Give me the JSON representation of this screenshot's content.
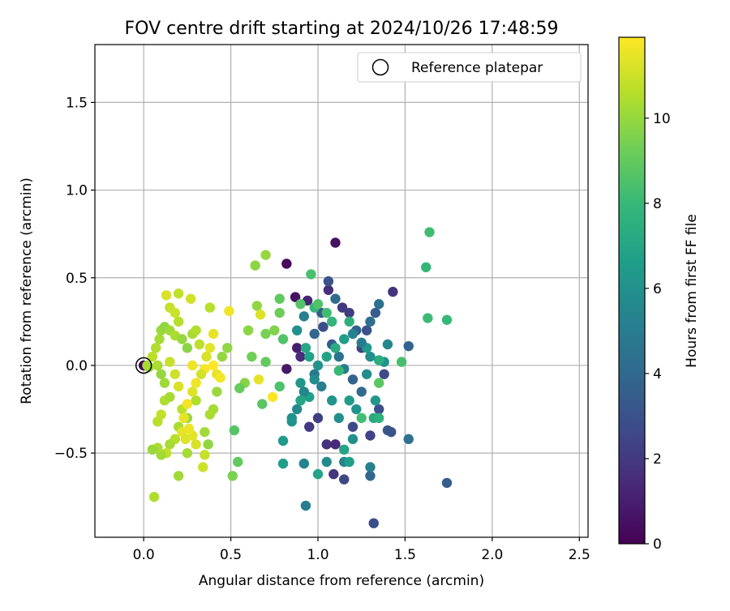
{
  "chart_data": {
    "type": "scatter",
    "title": "FOV centre drift starting at 2024/10/26 17:48:59",
    "xlabel": "Angular distance from reference (arcmin)",
    "ylabel": "Rotation from reference (arcmin)",
    "xlim": [
      -0.28,
      2.55
    ],
    "ylim": [
      -0.98,
      1.83
    ],
    "x_ticks": [
      0.0,
      0.5,
      1.0,
      1.5,
      2.0,
      2.5
    ],
    "x_tick_labels": [
      "0.0",
      "0.5",
      "1.0",
      "1.5",
      "2.0",
      "2.5"
    ],
    "y_ticks": [
      -0.5,
      0.0,
      0.5,
      1.0,
      1.5
    ],
    "y_tick_labels": [
      "−0.5",
      "0.0",
      "0.5",
      "1.0",
      "1.5"
    ],
    "grid": true,
    "legend": {
      "position": "top-right",
      "entries": [
        "Reference platepar"
      ]
    },
    "reference_point": {
      "x": 0.0,
      "y": 0.0,
      "label": "Reference platepar"
    },
    "colorbar": {
      "label": "Hours from first FF file",
      "range": [
        0,
        11.9
      ],
      "ticks": [
        0,
        2,
        4,
        6,
        8,
        10
      ],
      "tick_labels": [
        "0",
        "2",
        "4",
        "6",
        "8",
        "10"
      ],
      "colormap": "viridis"
    },
    "colormap_stops": [
      "#440154",
      "#482878",
      "#3e4a89",
      "#31688e",
      "#26828e",
      "#1f9e89",
      "#35b779",
      "#6ece58",
      "#b5de2b",
      "#fde725"
    ],
    "points": [
      [
        0.0,
        0.0,
        0.1
      ],
      [
        0.82,
        0.58,
        0.3
      ],
      [
        1.1,
        0.7,
        0.6
      ],
      [
        0.87,
        0.39,
        0.5
      ],
      [
        0.94,
        0.37,
        1.2
      ],
      [
        1.06,
        0.43,
        1.6
      ],
      [
        1.06,
        0.48,
        3.0
      ],
      [
        1.43,
        0.42,
        1.8
      ],
      [
        1.09,
        -0.62,
        1.9
      ],
      [
        1.15,
        -0.65,
        2.5
      ],
      [
        1.32,
        -0.9,
        2.8
      ],
      [
        1.74,
        -0.67,
        3.5
      ],
      [
        1.52,
        0.11,
        3.8
      ],
      [
        1.52,
        -0.42,
        4.5
      ],
      [
        0.93,
        -0.8,
        5.1
      ],
      [
        0.88,
        0.1,
        1.0
      ],
      [
        0.82,
        -0.02,
        0.8
      ],
      [
        0.9,
        0.05,
        1.5
      ],
      [
        0.95,
        -0.35,
        2.0
      ],
      [
        1.0,
        -0.3,
        2.2
      ],
      [
        1.05,
        -0.45,
        1.7
      ],
      [
        1.1,
        -0.45,
        1.4
      ],
      [
        1.2,
        -0.35,
        2.6
      ],
      [
        1.3,
        -0.63,
        4.0
      ],
      [
        1.3,
        -0.4,
        2.4
      ],
      [
        1.4,
        -0.37,
        3.2
      ],
      [
        1.42,
        -0.38,
        3.1
      ],
      [
        1.38,
        -0.05,
        2.7
      ],
      [
        1.35,
        -0.25,
        2.9
      ],
      [
        1.25,
        0.1,
        2.3
      ],
      [
        1.22,
        0.2,
        3.6
      ],
      [
        1.18,
        0.3,
        2.1
      ],
      [
        1.14,
        0.33,
        2.0
      ],
      [
        1.1,
        0.38,
        4.2
      ],
      [
        1.02,
        0.3,
        3.3
      ],
      [
        0.98,
        0.18,
        3.9
      ],
      [
        1.03,
        0.22,
        2.8
      ],
      [
        1.08,
        0.12,
        3.4
      ],
      [
        1.12,
        0.05,
        4.6
      ],
      [
        1.15,
        -0.02,
        5.0
      ],
      [
        1.2,
        -0.08,
        3.7
      ],
      [
        1.25,
        -0.15,
        4.1
      ],
      [
        1.28,
        0.2,
        3.0
      ],
      [
        1.3,
        0.25,
        4.3
      ],
      [
        1.33,
        0.3,
        3.5
      ],
      [
        1.35,
        0.35,
        4.4
      ],
      [
        1.4,
        0.12,
        5.5
      ],
      [
        1.28,
        -0.05,
        5.8
      ],
      [
        1.22,
        -0.25,
        6.1
      ],
      [
        1.18,
        -0.2,
        6.5
      ],
      [
        1.12,
        -0.3,
        5.9
      ],
      [
        1.08,
        -0.2,
        6.2
      ],
      [
        1.02,
        -0.12,
        5.2
      ],
      [
        0.98,
        -0.05,
        4.9
      ],
      [
        0.95,
        0.05,
        6.8
      ],
      [
        0.93,
        0.1,
        7.1
      ],
      [
        0.9,
        -0.1,
        6.3
      ],
      [
        0.88,
        -0.25,
        5.6
      ],
      [
        0.85,
        -0.3,
        6.0
      ],
      [
        0.8,
        -0.43,
        6.4
      ],
      [
        0.8,
        -0.56,
        6.6
      ],
      [
        0.92,
        -0.56,
        5.3
      ],
      [
        1.0,
        -0.62,
        6.9
      ],
      [
        1.05,
        -0.55,
        5.7
      ],
      [
        1.15,
        -0.55,
        5.4
      ],
      [
        1.18,
        -0.55,
        6.7
      ],
      [
        1.15,
        -0.48,
        7.0
      ],
      [
        1.2,
        -0.42,
        6.0
      ],
      [
        1.3,
        -0.58,
        5.1
      ],
      [
        1.32,
        -0.3,
        7.2
      ],
      [
        1.35,
        -0.3,
        7.6
      ],
      [
        1.33,
        -0.2,
        6.3
      ],
      [
        1.38,
        0.02,
        6.1
      ],
      [
        1.35,
        0.03,
        7.4
      ],
      [
        1.3,
        0.05,
        5.9
      ],
      [
        1.28,
        0.1,
        6.4
      ],
      [
        1.25,
        0.13,
        5.0
      ],
      [
        1.2,
        0.18,
        5.3
      ],
      [
        1.18,
        0.25,
        7.5
      ],
      [
        1.15,
        0.15,
        6.6
      ],
      [
        1.1,
        0.1,
        7.3
      ],
      [
        1.05,
        0.05,
        6.8
      ],
      [
        1.0,
        0.0,
        6.2
      ],
      [
        0.98,
        -0.08,
        5.8
      ],
      [
        0.95,
        -0.18,
        6.7
      ],
      [
        0.92,
        -0.15,
        5.5
      ],
      [
        0.9,
        -0.2,
        7.0
      ],
      [
        0.85,
        -0.32,
        6.1
      ],
      [
        0.88,
        0.2,
        6.0
      ],
      [
        0.92,
        0.28,
        5.2
      ],
      [
        0.98,
        0.33,
        7.9
      ],
      [
        1.0,
        0.35,
        8.6
      ],
      [
        1.05,
        0.3,
        8.2
      ],
      [
        1.08,
        0.25,
        7.8
      ],
      [
        1.12,
        -0.03,
        8.0
      ],
      [
        1.25,
        -0.3,
        8.3
      ],
      [
        1.35,
        -0.1,
        8.8
      ],
      [
        1.48,
        0.02,
        8.4
      ],
      [
        1.62,
        0.56,
        7.9
      ],
      [
        1.63,
        0.27,
        8.1
      ],
      [
        1.64,
        0.76,
        8.2
      ],
      [
        1.74,
        0.26,
        8.0
      ],
      [
        0.96,
        0.52,
        8.4
      ],
      [
        0.9,
        0.35,
        8.7
      ],
      [
        0.78,
        0.38,
        8.9
      ],
      [
        0.78,
        0.3,
        9.2
      ],
      [
        0.8,
        0.15,
        8.6
      ],
      [
        0.78,
        -0.12,
        8.5
      ],
      [
        0.7,
        0.02,
        9.0
      ],
      [
        0.68,
        -0.22,
        8.8
      ],
      [
        0.7,
        0.18,
        9.4
      ],
      [
        0.75,
        0.2,
        9.6
      ],
      [
        0.62,
        0.05,
        9.3
      ],
      [
        0.6,
        0.2,
        9.8
      ],
      [
        0.58,
        -0.1,
        9.7
      ],
      [
        0.55,
        -0.13,
        9.1
      ],
      [
        0.52,
        -0.37,
        8.7
      ],
      [
        0.54,
        -0.55,
        9.0
      ],
      [
        0.51,
        -0.63,
        9.5
      ],
      [
        0.64,
        0.57,
        9.8
      ],
      [
        0.7,
        0.63,
        10.0
      ],
      [
        0.65,
        0.34,
        9.9
      ],
      [
        0.42,
        -0.15,
        10.1
      ],
      [
        0.4,
        -0.25,
        10.3
      ],
      [
        0.38,
        -0.28,
        10.4
      ],
      [
        0.35,
        -0.38,
        10.2
      ],
      [
        0.37,
        -0.45,
        9.9
      ],
      [
        0.3,
        -0.2,
        10.5
      ],
      [
        0.25,
        -0.3,
        10.0
      ],
      [
        0.22,
        -0.25,
        10.7
      ],
      [
        0.2,
        -0.35,
        10.4
      ],
      [
        0.18,
        -0.42,
        10.6
      ],
      [
        0.15,
        -0.45,
        10.3
      ],
      [
        0.13,
        -0.5,
        10.8
      ],
      [
        0.1,
        -0.51,
        10.2
      ],
      [
        0.08,
        -0.47,
        10.4
      ],
      [
        0.05,
        -0.48,
        10.1
      ],
      [
        0.06,
        -0.75,
        10.5
      ],
      [
        0.2,
        -0.63,
        10.2
      ],
      [
        0.25,
        -0.5,
        10.3
      ],
      [
        0.35,
        -0.51,
        10.9
      ],
      [
        0.34,
        -0.58,
        11.0
      ],
      [
        0.08,
        -0.32,
        10.6
      ],
      [
        0.1,
        -0.28,
        10.8
      ],
      [
        0.12,
        -0.2,
        10.5
      ],
      [
        0.15,
        -0.18,
        10.3
      ],
      [
        0.12,
        -0.1,
        10.2
      ],
      [
        0.1,
        -0.05,
        10.0
      ],
      [
        0.08,
        0.0,
        10.4
      ],
      [
        0.05,
        0.05,
        10.7
      ],
      [
        0.07,
        0.1,
        10.5
      ],
      [
        0.09,
        0.15,
        10.3
      ],
      [
        0.1,
        0.2,
        10.1
      ],
      [
        0.12,
        0.22,
        9.9
      ],
      [
        0.15,
        0.2,
        10.2
      ],
      [
        0.18,
        0.17,
        10.4
      ],
      [
        0.2,
        0.25,
        10.6
      ],
      [
        0.22,
        0.15,
        10.0
      ],
      [
        0.25,
        0.1,
        9.8
      ],
      [
        0.28,
        0.18,
        10.3
      ],
      [
        0.3,
        0.2,
        10.5
      ],
      [
        0.32,
        0.12,
        10.7
      ],
      [
        0.15,
        0.33,
        10.9
      ],
      [
        0.13,
        0.4,
        11.2
      ],
      [
        0.2,
        0.41,
        10.8
      ],
      [
        0.18,
        0.3,
        11.0
      ],
      [
        0.27,
        0.38,
        11.1
      ],
      [
        0.38,
        0.33,
        10.6
      ],
      [
        0.49,
        0.31,
        11.6
      ],
      [
        0.67,
        0.29,
        11.3
      ],
      [
        0.4,
        0.18,
        11.5
      ],
      [
        0.38,
        0.1,
        11.4
      ],
      [
        0.36,
        0.05,
        11.2
      ],
      [
        0.35,
        -0.02,
        11.8
      ],
      [
        0.33,
        -0.05,
        11.1
      ],
      [
        0.3,
        -0.1,
        11.6
      ],
      [
        0.28,
        -0.15,
        11.3
      ],
      [
        0.25,
        -0.22,
        11.7
      ],
      [
        0.23,
        -0.3,
        11.5
      ],
      [
        0.22,
        -0.38,
        11.4
      ],
      [
        0.2,
        -0.12,
        11.2
      ],
      [
        0.18,
        -0.05,
        11.0
      ],
      [
        0.15,
        0.02,
        10.9
      ],
      [
        0.28,
        0.0,
        11.6
      ],
      [
        0.42,
        -0.05,
        11.5
      ],
      [
        0.44,
        -0.07,
        11.7
      ],
      [
        0.4,
        0.0,
        11.9
      ],
      [
        0.66,
        -0.08,
        11.5
      ],
      [
        0.74,
        -0.18,
        11.8
      ],
      [
        0.3,
        -0.45,
        11.2
      ],
      [
        0.28,
        -0.4,
        11.4
      ],
      [
        0.26,
        -0.36,
        11.6
      ],
      [
        0.24,
        -0.42,
        11.3
      ],
      [
        0.03,
        -0.01,
        10.2
      ],
      [
        0.45,
        0.05,
        10.0
      ],
      [
        0.48,
        0.1,
        9.9
      ],
      [
        0.02,
        0.0,
        10.3
      ]
    ]
  }
}
